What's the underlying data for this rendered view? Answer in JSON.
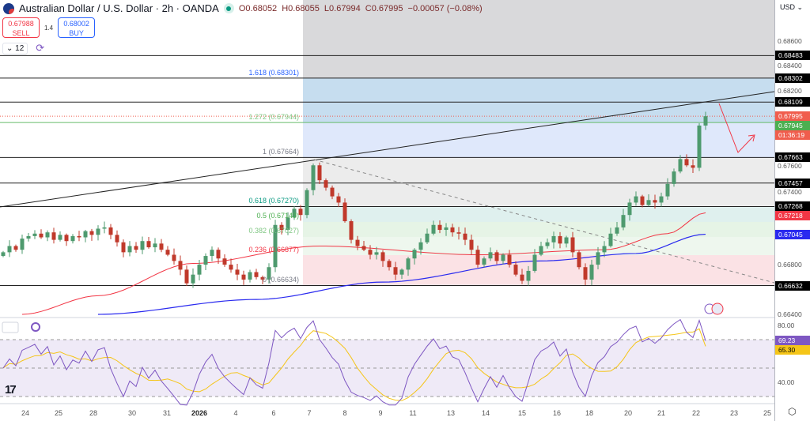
{
  "header": {
    "title": "Australian Dollar / U.S. Dollar · 2h · OANDA",
    "open": "O0.68052",
    "high": "H0.68055",
    "low": "L0.67994",
    "close": "C0.67995",
    "change": "−0.00057 (−0.08%)"
  },
  "trade": {
    "sell_price": "0.67988",
    "sell_label": "SELL",
    "spread": "1.4",
    "buy_price": "0.68002",
    "buy_label": "BUY"
  },
  "controls": {
    "indicator_count": "12"
  },
  "price_axis": {
    "currency": "USD",
    "ticks": [
      "0.68600",
      "0.68400",
      "0.68200",
      "0.67600",
      "0.67400",
      "0.66800",
      "0.66400"
    ],
    "tick_values": [
      0.686,
      0.684,
      0.682,
      0.676,
      0.674,
      0.668,
      0.664
    ],
    "tags": [
      {
        "text": "0.68483",
        "value": 0.68483,
        "color": "#000000"
      },
      {
        "text": "0.68302",
        "value": 0.68302,
        "color": "#000000"
      },
      {
        "text": "0.68109",
        "value": 0.68109,
        "color": "#000000"
      },
      {
        "text": "0.67945",
        "value": 0.67945,
        "color": "#4caf50"
      },
      {
        "text": "0.67663",
        "value": 0.67663,
        "color": "#000000"
      },
      {
        "text": "0.67457",
        "value": 0.67457,
        "color": "#000000"
      },
      {
        "text": "0.67268",
        "value": 0.67268,
        "color": "#000000"
      },
      {
        "text": "0.67218",
        "value": 0.67218,
        "color": "#f23645"
      },
      {
        "text": "0.67045",
        "value": 0.67045,
        "color": "#2a2aef"
      },
      {
        "text": "0.66632",
        "value": 0.66632,
        "color": "#000000"
      }
    ],
    "current": {
      "price": "0.67995",
      "value": 0.67995,
      "countdown": "01:36:19",
      "color": "#f05d4d"
    }
  },
  "rsi_axis": {
    "ticks": [
      "80.00",
      "40.00"
    ],
    "tick_values": [
      80,
      40
    ],
    "rsi_tag": "69.23",
    "rsi_value": 69.23,
    "ma_tag": "65.30",
    "ma_value": 65.3
  },
  "time_axis": [
    "24",
    "25",
    "28",
    "30",
    "31",
    "2026",
    "4",
    "6",
    "7",
    "8",
    "9",
    "11",
    "13",
    "14",
    "15",
    "16",
    "18",
    "20",
    "21",
    "22",
    "23",
    "25"
  ],
  "fib": [
    {
      "label": "1.618 (0.68301)",
      "value": 0.68301,
      "color": "#2962ff"
    },
    {
      "label": "1.272 (0.67944)",
      "value": 0.67944,
      "color": "#81c784"
    },
    {
      "label": "1 (0.67664)",
      "value": 0.67664,
      "color": "#787b86"
    },
    {
      "label": "0.618 (0.67270)",
      "value": 0.6727,
      "color": "#089981"
    },
    {
      "label": "0.5 (0.67149)",
      "value": 0.67149,
      "color": "#4caf50"
    },
    {
      "label": "0.382 (0.67027)",
      "value": 0.67027,
      "color": "#81c784"
    },
    {
      "label": "0.236 (0.66877)",
      "value": 0.66877,
      "color": "#f23645"
    },
    {
      "label": "0 (0.66634)",
      "value": 0.66634,
      "color": "#787b86"
    }
  ],
  "levels": [
    0.68483,
    0.68302,
    0.68109,
    0.67663,
    0.67457,
    0.67268,
    0.66632
  ],
  "chart_data": {
    "type": "candlestick",
    "title": "Australian Dollar / U.S. Dollar · 2h · OANDA",
    "ylim": [
      0.664,
      0.687
    ],
    "closes": [
      0.669,
      0.6695,
      0.6692,
      0.6701,
      0.6703,
      0.6705,
      0.6702,
      0.6706,
      0.67,
      0.6704,
      0.6699,
      0.6703,
      0.6702,
      0.6707,
      0.6704,
      0.6709,
      0.671,
      0.6704,
      0.6698,
      0.669,
      0.6695,
      0.6692,
      0.6699,
      0.6694,
      0.6697,
      0.6692,
      0.6688,
      0.6683,
      0.6676,
      0.6665,
      0.6672,
      0.668,
      0.6687,
      0.6692,
      0.6685,
      0.668,
      0.6676,
      0.6672,
      0.6668,
      0.6674,
      0.667,
      0.6668,
      0.6678,
      0.6712,
      0.6708,
      0.6718,
      0.6725,
      0.672,
      0.674,
      0.676,
      0.6748,
      0.6742,
      0.6735,
      0.673,
      0.6715,
      0.67,
      0.6695,
      0.6692,
      0.6688,
      0.669,
      0.6683,
      0.6678,
      0.6672,
      0.6676,
      0.6685,
      0.6692,
      0.6698,
      0.6705,
      0.6712,
      0.6708,
      0.671,
      0.6706,
      0.6705,
      0.67,
      0.6692,
      0.668,
      0.6685,
      0.669,
      0.6683,
      0.6688,
      0.668,
      0.6672,
      0.6667,
      0.6675,
      0.6688,
      0.6695,
      0.6698,
      0.6703,
      0.6697,
      0.6702,
      0.669,
      0.6678,
      0.6668,
      0.668,
      0.669,
      0.6695,
      0.6705,
      0.671,
      0.672,
      0.673,
      0.6735,
      0.6728,
      0.6732,
      0.673,
      0.6735,
      0.6745,
      0.6755,
      0.6765,
      0.676,
      0.6758,
      0.6792,
      0.67995
    ],
    "ma_red": [
      [
        3,
        0.664
      ],
      [
        15,
        0.6655
      ],
      [
        30,
        0.6681
      ],
      [
        50,
        0.6695
      ],
      [
        75,
        0.6688
      ],
      [
        95,
        0.6692
      ],
      [
        105,
        0.6705
      ],
      [
        111,
        0.67218
      ]
    ],
    "ma_blue": [
      [
        15,
        0.664
      ],
      [
        40,
        0.6652
      ],
      [
        60,
        0.6666
      ],
      [
        85,
        0.6683
      ],
      [
        100,
        0.6689
      ],
      [
        111,
        0.67045
      ]
    ],
    "rsi": {
      "ylim": [
        20,
        88
      ],
      "levels": [
        70,
        50,
        30
      ],
      "last": 69.23,
      "ma_last": 65.3
    }
  },
  "colors": {
    "up": "#4e9a6e",
    "down": "#c0392b",
    "ma_red": "#f23645",
    "ma_blue": "#2a2aef",
    "rsi": "#7e57c2",
    "rsi_ma": "#f5c518"
  }
}
